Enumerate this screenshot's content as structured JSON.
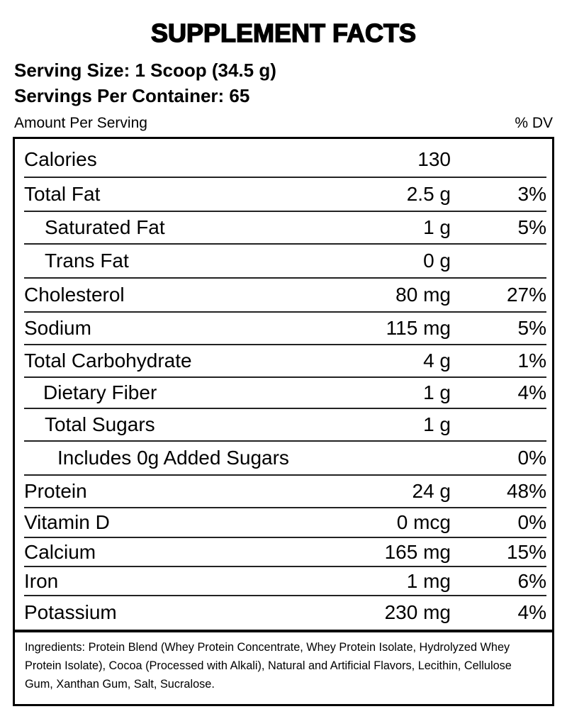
{
  "title": "SUPPLEMENT FACTS",
  "serving_size": "Serving Size: 1 Scoop (34.5 g)",
  "servings_per_container": "Servings Per Container: 65",
  "amount_per_serving": "Amount Per Serving",
  "dv_header": "% DV",
  "rows": [
    {
      "label": "Calories",
      "amount": "130",
      "dv": ""
    },
    {
      "label": "Total Fat",
      "amount": "2.5 g",
      "dv": "3%"
    },
    {
      "label": "Saturated Fat",
      "amount": "1 g",
      "dv": "5%"
    },
    {
      "label": "Trans Fat",
      "amount": "0 g",
      "dv": ""
    },
    {
      "label": "Cholesterol",
      "amount": "80 mg",
      "dv": "27%"
    },
    {
      "label": "Sodium",
      "amount": "115 mg",
      "dv": "5%"
    },
    {
      "label": "Total Carbohydrate",
      "amount": "4 g",
      "dv": "1%"
    },
    {
      "label": "Dietary Fiber",
      "amount": "1 g",
      "dv": "4%"
    },
    {
      "label": "Total Sugars",
      "amount": "1 g",
      "dv": ""
    },
    {
      "label": "Includes 0g Added Sugars",
      "amount": "",
      "dv": "0%"
    },
    {
      "label": "Protein",
      "amount": "24 g",
      "dv": "48%"
    },
    {
      "label": "Vitamin D",
      "amount": "0 mcg",
      "dv": "0%"
    },
    {
      "label": "Calcium",
      "amount": "165 mg",
      "dv": "15%"
    },
    {
      "label": "Iron",
      "amount": "1 mg",
      "dv": "6%"
    },
    {
      "label": "Potassium",
      "amount": "230 mg",
      "dv": "4%"
    }
  ],
  "ingredients": "Ingredients: Protein Blend (Whey Protein Concentrate, Whey Protein Isolate, Hydrolyzed Whey Protein Isolate), Cocoa (Processed with Alkali), Natural and Artificial Flavors, Lecithin, Cellulose Gum, Xanthan Gum, Salt, Sucralose."
}
